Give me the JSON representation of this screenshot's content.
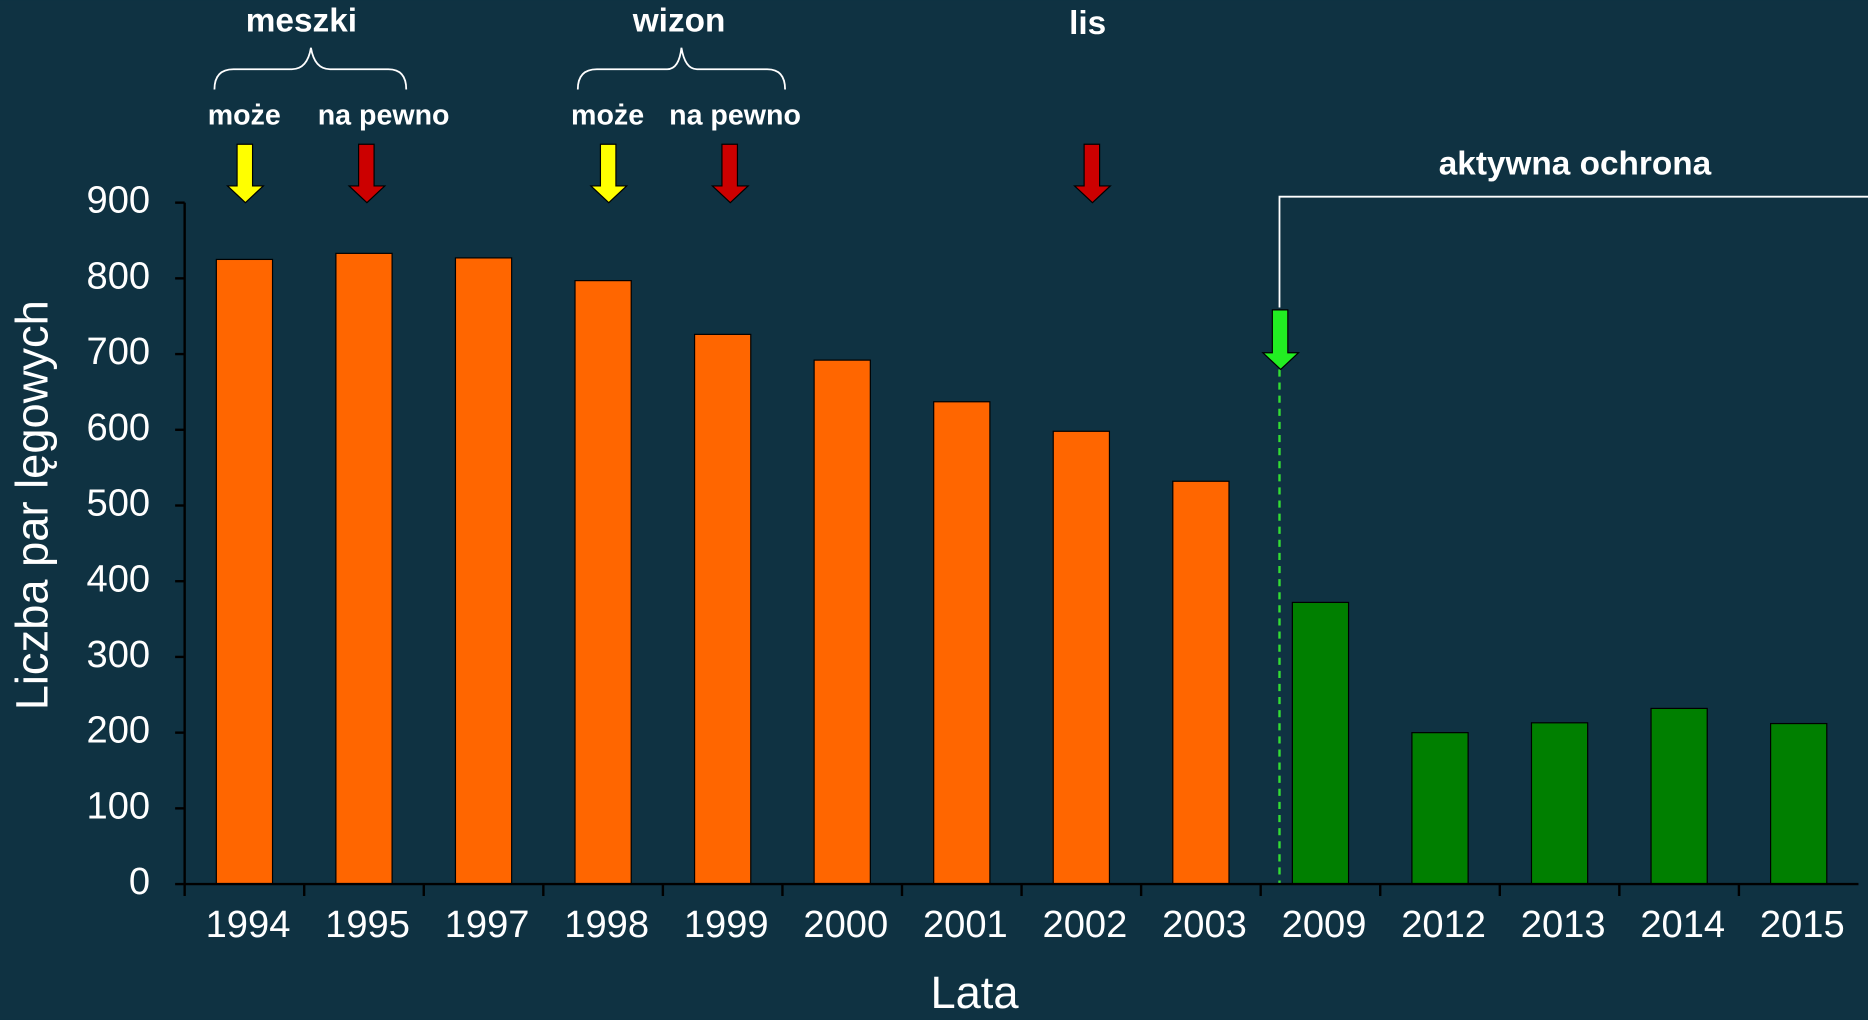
{
  "chart_data": {
    "type": "bar",
    "y_label": "Liczba par lęgowych",
    "x_label": "Lata",
    "categories": [
      "1994",
      "1995",
      "1997",
      "1998",
      "1999",
      "2000",
      "2001",
      "2002",
      "2003",
      "2009",
      "2012",
      "2013",
      "2014",
      "2015"
    ],
    "values": [
      825,
      833,
      827,
      797,
      726,
      692,
      637,
      598,
      532,
      372,
      200,
      213,
      232,
      212
    ],
    "colors": [
      "#ff6600",
      "#ff6600",
      "#ff6600",
      "#ff6600",
      "#ff6600",
      "#ff6600",
      "#ff6600",
      "#ff6600",
      "#ff6600",
      "#007f00",
      "#007f00",
      "#007f00",
      "#007f00",
      "#007f00"
    ],
    "ylim": [
      0,
      900
    ],
    "yticks": [
      0,
      100,
      200,
      300,
      400,
      500,
      600,
      700,
      800,
      900
    ],
    "annotations": {
      "mink_group": "meszki",
      "mink_maybe": "może",
      "mink_sure": "na pewno",
      "wizon_group": "wizon",
      "wizon_maybe": "może",
      "wizon_sure": "na pewno",
      "fox": "lis",
      "protection": "aktywna ochrona"
    }
  }
}
